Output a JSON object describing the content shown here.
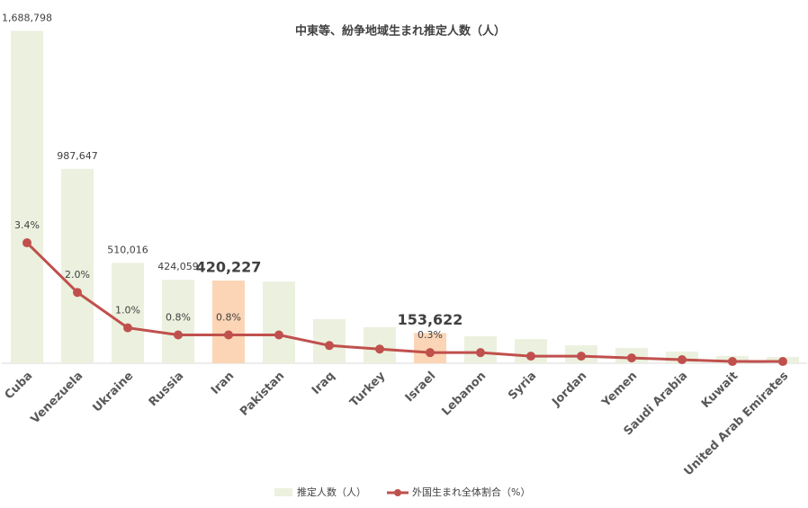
{
  "chart_data": {
    "type": "bar-line",
    "title": "中東等、紛争地域生まれ推定人数（人）",
    "categories": [
      "Cuba",
      "Venezuela",
      "Ukraine",
      "Russia",
      "Iran",
      "Pakistan",
      "Iraq",
      "Turkey",
      "Israel",
      "Lebanon",
      "Syria",
      "Jordan",
      "Yemen",
      "Saudi Arabia",
      "Kuwait",
      "United Arab Emirates"
    ],
    "ylim": [
      0,
      1800000
    ],
    "y2lim": [
      0,
      10
    ],
    "highlight": [
      4,
      8
    ],
    "series": [
      {
        "name": "推定人数（人）",
        "type": "bar",
        "color": "#ebf1de",
        "highlight_color": "#fbd5b5",
        "values": [
          1688798,
          987647,
          510016,
          424059,
          420227,
          415000,
          224000,
          183000,
          153622,
          137000,
          123000,
          91000,
          78000,
          59000,
          37000,
          32000
        ],
        "value_labels": [
          "1,688,798",
          "987,647",
          "510,016",
          "424,059",
          "420,227",
          null,
          null,
          null,
          "153,622",
          null,
          null,
          null,
          null,
          null,
          null,
          null
        ]
      },
      {
        "name": "外国生まれ全体割合（%）",
        "type": "line",
        "axis": "y2",
        "color": "#c0504d",
        "values": [
          3.4,
          2.0,
          1.0,
          0.8,
          0.8,
          0.8,
          0.5,
          0.4,
          0.3,
          0.3,
          0.2,
          0.2,
          0.15,
          0.1,
          0.05,
          0.05
        ],
        "value_labels": [
          "3.4%",
          "2.0%",
          "1.0%",
          "0.8%",
          "0.8%",
          null,
          null,
          null,
          "0.3%",
          null,
          null,
          null,
          null,
          null,
          null,
          null
        ]
      }
    ]
  }
}
